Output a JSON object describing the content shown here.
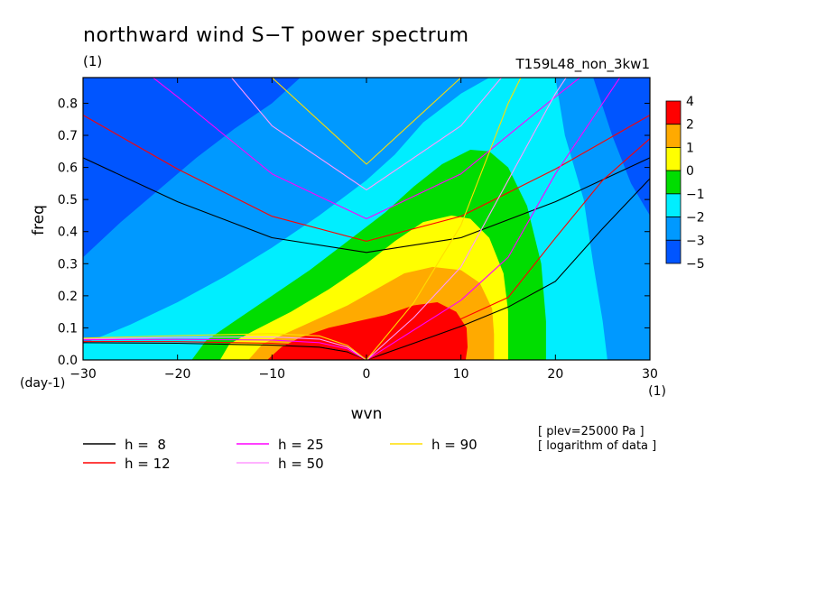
{
  "chart_data": {
    "type": "heatmap",
    "title": "northward wind S−T power spectrum",
    "subtitle": "(1)",
    "run_label": "T159L48_non_3kw1",
    "xlabel": "wvn",
    "ylabel": "freq",
    "x_unit": "(1)",
    "y_unit": "(day-1)",
    "xlim": [
      -30,
      30
    ],
    "ylim": [
      0,
      0.88
    ],
    "xticks": [
      -30,
      -20,
      -10,
      0,
      10,
      20,
      30
    ],
    "yticks": [
      0.0,
      0.1,
      0.2,
      0.3,
      0.4,
      0.5,
      0.6,
      0.7,
      0.8
    ],
    "xtick_labels": [
      "−30",
      "−20",
      "−10",
      "0",
      "10",
      "20",
      "30"
    ],
    "ytick_labels": [
      "0.0",
      "0.1",
      "0.2",
      "0.3",
      "0.4",
      "0.5",
      "0.6",
      "0.7",
      "0.8"
    ],
    "colorbar": {
      "labels": [
        "4",
        "2",
        "1",
        "0",
        "−1",
        "−2",
        "−3",
        "−5"
      ],
      "levels": [
        -5,
        -3,
        -2,
        -1,
        0,
        1,
        2,
        4
      ],
      "colors": [
        "#0055ff",
        "#0099ff",
        "#00eeff",
        "#00dd00",
        "#ffff00",
        "#ffaa00",
        "#ff0000"
      ]
    },
    "field_contours": [
      {
        "level": -3,
        "color": "#0099ff",
        "points": [
          [
            -30,
            0.32
          ],
          [
            -26,
            0.43
          ],
          [
            -22,
            0.53
          ],
          [
            -18,
            0.63
          ],
          [
            -14,
            0.72
          ],
          [
            -10,
            0.8
          ],
          [
            -7,
            0.88
          ],
          [
            24,
            0.88
          ],
          [
            26,
            0.7
          ],
          [
            28,
            0.55
          ],
          [
            30,
            0.45
          ],
          [
            30,
            0
          ],
          [
            -30,
            0
          ]
        ]
      },
      {
        "level": -2,
        "color": "#00eeff",
        "points": [
          [
            -30,
            0.05
          ],
          [
            -25,
            0.11
          ],
          [
            -20,
            0.18
          ],
          [
            -15,
            0.26
          ],
          [
            -10,
            0.35
          ],
          [
            -5,
            0.45
          ],
          [
            0,
            0.56
          ],
          [
            3,
            0.64
          ],
          [
            6,
            0.74
          ],
          [
            10,
            0.83
          ],
          [
            13,
            0.88
          ],
          [
            20,
            0.88
          ],
          [
            21,
            0.7
          ],
          [
            23,
            0.5
          ],
          [
            24,
            0.3
          ],
          [
            25,
            0.12
          ],
          [
            25.5,
            0
          ],
          [
            -30,
            0
          ]
        ]
      },
      {
        "level": -1,
        "color": "#00dd00",
        "points": [
          [
            -18.5,
            0
          ],
          [
            -17,
            0.06
          ],
          [
            -14,
            0.12
          ],
          [
            -10,
            0.2
          ],
          [
            -6,
            0.28
          ],
          [
            -2,
            0.37
          ],
          [
            2,
            0.46
          ],
          [
            5,
            0.54
          ],
          [
            8,
            0.61
          ],
          [
            11,
            0.655
          ],
          [
            13,
            0.65
          ],
          [
            15,
            0.6
          ],
          [
            17,
            0.48
          ],
          [
            18.5,
            0.3
          ],
          [
            19,
            0.12
          ],
          [
            19,
            0
          ]
        ]
      },
      {
        "level": 0,
        "color": "#ffff00",
        "points": [
          [
            -15.5,
            0
          ],
          [
            -14.5,
            0.05
          ],
          [
            -12,
            0.09
          ],
          [
            -8,
            0.15
          ],
          [
            -4,
            0.22
          ],
          [
            0,
            0.3
          ],
          [
            3,
            0.37
          ],
          [
            6,
            0.43
          ],
          [
            9,
            0.45
          ],
          [
            11,
            0.44
          ],
          [
            13,
            0.38
          ],
          [
            14.5,
            0.27
          ],
          [
            15,
            0.15
          ],
          [
            15,
            0
          ]
        ]
      },
      {
        "level": 1,
        "color": "#ffaa00",
        "points": [
          [
            -12.5,
            0
          ],
          [
            -11,
            0.05
          ],
          [
            -8,
            0.09
          ],
          [
            -5,
            0.13
          ],
          [
            -2,
            0.17
          ],
          [
            1,
            0.22
          ],
          [
            4,
            0.27
          ],
          [
            7,
            0.29
          ],
          [
            10,
            0.28
          ],
          [
            12,
            0.24
          ],
          [
            13.3,
            0.16
          ],
          [
            13.5,
            0.08
          ],
          [
            13.5,
            0
          ]
        ]
      },
      {
        "level": 2,
        "color": "#ff0000",
        "points": [
          [
            -10.5,
            0
          ],
          [
            -9,
            0.04
          ],
          [
            -7,
            0.07
          ],
          [
            -4,
            0.1
          ],
          [
            -1,
            0.12
          ],
          [
            2,
            0.14
          ],
          [
            5,
            0.17
          ],
          [
            7.5,
            0.18
          ],
          [
            9.5,
            0.15
          ],
          [
            10.6,
            0.1
          ],
          [
            10.7,
            0.04
          ],
          [
            10.5,
            0
          ]
        ]
      }
    ],
    "dispersion_curves": [
      {
        "name": "h =  8",
        "color": "#000000",
        "branches": [
          [
            [
              -30,
              0.63
            ],
            [
              -20,
              0.493
            ],
            [
              -10,
              0.381
            ],
            [
              0,
              0.335
            ],
            [
              10,
              0.381
            ],
            [
              20,
              0.493
            ],
            [
              30,
              0.63
            ]
          ],
          [
            [
              -30,
              0.054
            ],
            [
              -20,
              0.052
            ],
            [
              -10,
              0.046
            ],
            [
              -5,
              0.04
            ],
            [
              -2,
              0.025
            ],
            [
              0,
              0.0
            ]
          ],
          [
            [
              0,
              0.0
            ],
            [
              5,
              0.052
            ],
            [
              10,
              0.105
            ],
            [
              15,
              0.165
            ],
            [
              20,
              0.245
            ],
            [
              25,
              0.41
            ],
            [
              30,
              0.565
            ]
          ]
        ]
      },
      {
        "name": "h = 12",
        "color": "#ff0000",
        "branches": [
          [
            [
              -30,
              0.763
            ],
            [
              -20,
              0.595
            ],
            [
              -10,
              0.448
            ],
            [
              0,
              0.37
            ],
            [
              10,
              0.448
            ],
            [
              20,
              0.595
            ],
            [
              30,
              0.763
            ]
          ],
          [
            [
              -30,
              0.058
            ],
            [
              -20,
              0.057
            ],
            [
              -10,
              0.052
            ],
            [
              -5,
              0.044
            ],
            [
              -2,
              0.028
            ],
            [
              0,
              0.0
            ]
          ],
          [
            [
              0,
              0.0
            ],
            [
              5,
              0.064
            ],
            [
              10,
              0.128
            ],
            [
              15,
              0.195
            ],
            [
              20,
              0.38
            ],
            [
              25,
              0.56
            ],
            [
              30,
              0.69
            ]
          ]
        ]
      },
      {
        "name": "h = 25",
        "color": "#ff00ff",
        "branches": [
          [
            [
              -30,
              1.05
            ],
            [
              -20,
              0.82
            ],
            [
              -10,
              0.58
            ],
            [
              0,
              0.44
            ],
            [
              10,
              0.58
            ],
            [
              20,
              0.82
            ],
            [
              30,
              1.05
            ]
          ],
          [
            [
              -30,
              0.063
            ],
            [
              -20,
              0.064
            ],
            [
              -10,
              0.062
            ],
            [
              -5,
              0.054
            ],
            [
              -2,
              0.034
            ],
            [
              0,
              0.0
            ]
          ],
          [
            [
              0,
              0.0
            ],
            [
              5,
              0.093
            ],
            [
              10,
              0.186
            ],
            [
              15,
              0.32
            ],
            [
              20,
              0.58
            ],
            [
              25,
              0.8
            ],
            [
              30,
              1.02
            ]
          ]
        ]
      },
      {
        "name": "h = 50",
        "color": "#ff99ff",
        "branches": [
          [
            [
              -30,
              1.46
            ],
            [
              -20,
              1.08
            ],
            [
              -10,
              0.73
            ],
            [
              0,
              0.53
            ],
            [
              10,
              0.73
            ],
            [
              20,
              1.08
            ],
            [
              30,
              1.46
            ]
          ],
          [
            [
              -30,
              0.066
            ],
            [
              -20,
              0.07
            ],
            [
              -10,
              0.072
            ],
            [
              -5,
              0.065
            ],
            [
              -2,
              0.04
            ],
            [
              0,
              0.0
            ]
          ],
          [
            [
              0,
              0.0
            ],
            [
              5,
              0.132
            ],
            [
              10,
              0.29
            ],
            [
              15,
              0.56
            ],
            [
              20,
              0.83
            ],
            [
              25,
              1.05
            ],
            [
              30,
              1.25
            ]
          ]
        ]
      },
      {
        "name": "h = 90",
        "color": "#ffdd00",
        "branches": [
          [
            [
              -30,
              1.95
            ],
            [
              -20,
              1.4
            ],
            [
              -10,
              0.88
            ],
            [
              0,
              0.61
            ],
            [
              10,
              0.88
            ],
            [
              20,
              1.4
            ],
            [
              30,
              1.95
            ]
          ],
          [
            [
              -30,
              0.068
            ],
            [
              -20,
              0.076
            ],
            [
              -10,
              0.082
            ],
            [
              -5,
              0.075
            ],
            [
              -2,
              0.045
            ],
            [
              0,
              0.0
            ]
          ],
          [
            [
              0,
              0.0
            ],
            [
              5,
              0.178
            ],
            [
              10,
              0.42
            ],
            [
              15,
              0.8
            ],
            [
              20,
              1.1
            ],
            [
              25,
              1.4
            ],
            [
              30,
              1.7
            ]
          ]
        ]
      }
    ],
    "legend": [
      {
        "label": "h =  8",
        "color": "#000000"
      },
      {
        "label": "h = 25",
        "color": "#ff00ff"
      },
      {
        "label": "h = 90",
        "color": "#ffdd00"
      },
      {
        "label": "h = 12",
        "color": "#ff0000"
      },
      {
        "label": "h = 50",
        "color": "#ff99ff"
      }
    ],
    "notes": [
      "[ plev=25000 Pa ]",
      "[ logarithm of data ]"
    ]
  }
}
